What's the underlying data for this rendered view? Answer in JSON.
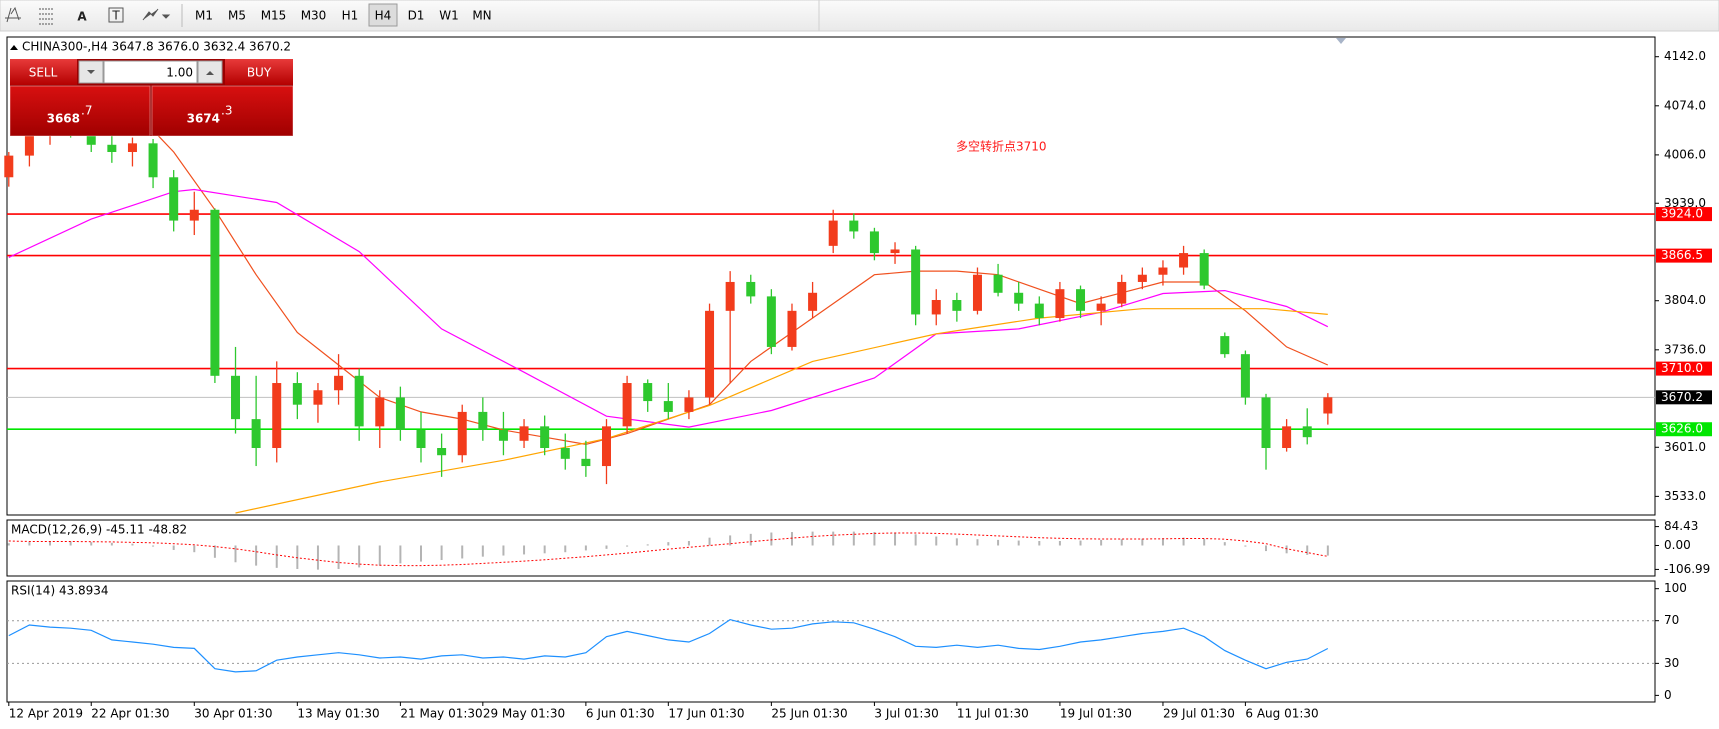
{
  "toolbar": {
    "text_tool": "A",
    "text_box_tool": "T",
    "timeframes": [
      "M1",
      "M5",
      "M15",
      "M30",
      "H1",
      "H4",
      "D1",
      "W1",
      "MN"
    ],
    "active": "H4"
  },
  "trade_panel": {
    "sell": "SELL",
    "lot": "1.00",
    "buy": "BUY",
    "bid": {
      "digits": "3668",
      "pips": ".7"
    },
    "ask": {
      "digits": "3674",
      "pips": ".3"
    }
  },
  "chart_data": [
    {
      "type": "candlestick",
      "title": "CHINA300-,H4  3647.8 3676.0 3632.4 3670.2",
      "annotation": "多空转折点3710",
      "annotation_color": "#ff1a1a",
      "categories": [
        "12 Apr 2019",
        null,
        null,
        null,
        "22 Apr 01:30",
        null,
        null,
        null,
        null,
        "30 Apr 01:30",
        null,
        null,
        null,
        null,
        "13 May 01:30",
        null,
        null,
        null,
        null,
        "21 May 01:30",
        null,
        null,
        null,
        "29 May 01:30",
        null,
        null,
        null,
        null,
        "6 Jun 01:30",
        null,
        null,
        null,
        "17 Jun 01:30",
        null,
        null,
        null,
        null,
        "25 Jun 01:30",
        null,
        null,
        null,
        null,
        "3 Jul 01:30",
        null,
        null,
        null,
        "11 Jul 01:30",
        null,
        null,
        null,
        null,
        "19 Jul 01:30",
        null,
        null,
        null,
        null,
        "29 Jul 01:30",
        null,
        null,
        null,
        "6 Aug 01:30",
        null,
        null,
        null,
        null
      ],
      "open": [
        3975,
        4005,
        4040,
        4050,
        4035,
        4020,
        4010,
        4022,
        3975,
        3915,
        3930,
        3700,
        3640,
        3600,
        3690,
        3660,
        3680,
        3700,
        3630,
        3670,
        3625,
        3600,
        3590,
        3650,
        3625,
        3610,
        3630,
        3600,
        3585,
        3575,
        3630,
        3690,
        3665,
        3650,
        3670,
        3790,
        3830,
        3810,
        3740,
        3790,
        3880,
        3915,
        3900,
        3870,
        3875,
        3785,
        3805,
        3790,
        3840,
        3815,
        3800,
        3780,
        3820,
        3790,
        3800,
        3830,
        3840,
        3850,
        3870,
        3755,
        3730,
        3670,
        3600,
        3630,
        3647.8
      ],
      "high": [
        4010,
        4060,
        4080,
        4075,
        4050,
        4035,
        4030,
        4028,
        3985,
        3955,
        3932,
        3740,
        3700,
        3720,
        3705,
        3690,
        3730,
        3710,
        3680,
        3685,
        3650,
        3620,
        3660,
        3670,
        3650,
        3640,
        3645,
        3620,
        3610,
        3640,
        3700,
        3695,
        3690,
        3680,
        3800,
        3845,
        3840,
        3820,
        3800,
        3830,
        3930,
        3925,
        3905,
        3885,
        3880,
        3820,
        3815,
        3850,
        3855,
        3830,
        3810,
        3830,
        3825,
        3810,
        3840,
        3850,
        3860,
        3880,
        3875,
        3760,
        3735,
        3675,
        3640,
        3655,
        3676.0
      ],
      "low": [
        3962,
        3990,
        4020,
        4030,
        4010,
        3995,
        3990,
        3960,
        3900,
        3895,
        3690,
        3620,
        3575,
        3580,
        3640,
        3635,
        3660,
        3610,
        3600,
        3610,
        3580,
        3560,
        3580,
        3610,
        3590,
        3600,
        3590,
        3570,
        3560,
        3550,
        3620,
        3650,
        3640,
        3640,
        3660,
        3690,
        3800,
        3730,
        3735,
        3780,
        3870,
        3890,
        3860,
        3855,
        3770,
        3770,
        3775,
        3785,
        3810,
        3790,
        3770,
        3775,
        3780,
        3770,
        3795,
        3820,
        3825,
        3840,
        3820,
        3725,
        3660,
        3570,
        3595,
        3605,
        3632.4
      ],
      "close": [
        4005,
        4040,
        4050,
        4035,
        4020,
        4010,
        4022,
        3975,
        3915,
        3930,
        3700,
        3640,
        3600,
        3690,
        3660,
        3680,
        3700,
        3630,
        3670,
        3625,
        3600,
        3590,
        3650,
        3625,
        3610,
        3630,
        3600,
        3585,
        3575,
        3630,
        3690,
        3665,
        3650,
        3670,
        3790,
        3830,
        3810,
        3740,
        3790,
        3815,
        3915,
        3900,
        3870,
        3875,
        3785,
        3805,
        3790,
        3840,
        3815,
        3800,
        3780,
        3820,
        3790,
        3800,
        3830,
        3840,
        3850,
        3870,
        3825,
        3730,
        3670,
        3600,
        3630,
        3615,
        3670.2
      ],
      "up_color": "#f23c1c",
      "down_color": "#2ec82e",
      "moving_averages": [
        {
          "color": "#f0501e",
          "x": [
            7,
            8,
            10,
            12,
            14,
            16,
            18,
            20,
            22,
            24,
            26,
            28,
            30,
            32,
            34,
            36,
            38,
            40,
            42,
            44,
            46,
            48,
            50,
            52,
            54,
            56,
            58,
            60,
            62,
            64
          ],
          "values": [
            4040,
            4010,
            3930,
            3840,
            3760,
            3715,
            3670,
            3650,
            3640,
            3625,
            3615,
            3605,
            3620,
            3640,
            3660,
            3720,
            3760,
            3800,
            3840,
            3845,
            3845,
            3840,
            3820,
            3800,
            3815,
            3830,
            3830,
            3790,
            3740,
            3715
          ]
        },
        {
          "color": "#ff00ff",
          "x": [
            0,
            4,
            8,
            9,
            13,
            17,
            21,
            25,
            29,
            33,
            37,
            42,
            45,
            49,
            53,
            56,
            59,
            62,
            64
          ],
          "values": [
            3864,
            3917,
            3955,
            3958,
            3940,
            3872,
            3765,
            3705,
            3644,
            3629,
            3652,
            3697,
            3758,
            3765,
            3788,
            3814,
            3818,
            3796,
            3768
          ]
        },
        {
          "color": "#ffa500",
          "x": [
            11,
            18,
            24,
            29,
            34,
            39,
            45,
            50,
            55,
            61,
            64
          ],
          "values": [
            3510,
            3553,
            3583,
            3613,
            3659,
            3720,
            3758,
            3780,
            3793,
            3793,
            3785
          ]
        }
      ],
      "levels": [
        {
          "value": 3924.0,
          "label": "3924.0",
          "color": "#ff0000",
          "line_color": "#ff0000"
        },
        {
          "value": 3866.5,
          "label": "3866.5",
          "color": "#ff0000",
          "line_color": "#ff0000"
        },
        {
          "value": 3710.0,
          "label": "3710.0",
          "color": "#ff0000",
          "line_color": "#ff0000"
        },
        {
          "value": 3626.0,
          "label": "3626.0",
          "color": "#00e600",
          "line_color": "#00e600"
        },
        {
          "value": 3670.2,
          "label": "3670.2",
          "color": "#000000",
          "line_color": "#c0c0c0"
        }
      ],
      "ylim": [
        3507.2,
        4169.3
      ],
      "yticks": [
        {
          "value": 4142,
          "label": "4142.0"
        },
        {
          "value": 4074,
          "label": "4074.0"
        },
        {
          "value": 4006,
          "label": "4006.0"
        },
        {
          "value": 3939,
          "label": "3939.0"
        },
        {
          "value": 3804,
          "label": "3804.0"
        },
        {
          "value": 3736,
          "label": "3736.0"
        },
        {
          "value": 3601,
          "label": "3601.0"
        },
        {
          "value": 3533,
          "label": "3533.0"
        }
      ]
    },
    {
      "type": "macd",
      "title": "MACD(12,26,9) -45.11 -48.82",
      "histogram": [
        10,
        15,
        20,
        18,
        15,
        12,
        8,
        -5,
        -20,
        -30,
        -55,
        -75,
        -90,
        -100,
        -105,
        -108,
        -105,
        -98,
        -90,
        -80,
        -72,
        -65,
        -58,
        -50,
        -45,
        -40,
        -35,
        -30,
        -22,
        -15,
        -5,
        5,
        15,
        20,
        35,
        45,
        52,
        58,
        60,
        62,
        62,
        62,
        60,
        58,
        50,
        40,
        32,
        28,
        25,
        22,
        20,
        20,
        22,
        25,
        28,
        30,
        32,
        35,
        30,
        15,
        -5,
        -25,
        -35,
        -42,
        -45.11
      ],
      "signal": [
        20,
        18,
        18,
        18,
        17,
        16,
        14,
        12,
        8,
        3,
        -5,
        -15,
        -28,
        -42,
        -55,
        -66,
        -76,
        -83,
        -88,
        -90,
        -90,
        -88,
        -85,
        -80,
        -75,
        -70,
        -64,
        -57,
        -50,
        -42,
        -34,
        -25,
        -16,
        -8,
        0,
        8,
        17,
        25,
        33,
        40,
        46,
        50,
        54,
        56,
        56,
        54,
        51,
        47,
        43,
        39,
        35,
        32,
        30,
        29,
        29,
        29,
        30,
        31,
        31,
        28,
        20,
        8,
        -15,
        -32,
        -48.82
      ],
      "histogram_color": "#b4b4b4",
      "signal_color": "#ff0000",
      "ylim": [
        -136.4,
        113.9
      ],
      "yticks": [
        {
          "value": 84.43,
          "label": "84.43"
        },
        {
          "value": 0,
          "label": "0.00"
        },
        {
          "value": -106.99,
          "label": "-106.99"
        }
      ]
    },
    {
      "type": "line",
      "title": "RSI(14) 43.8934",
      "color": "#1e90ff",
      "values": [
        56,
        66,
        64,
        63,
        61,
        52,
        50,
        48,
        45,
        44,
        25,
        22,
        23,
        33,
        36,
        38,
        40,
        38,
        35,
        36,
        34,
        37,
        38,
        35,
        36,
        34,
        37,
        36,
        40,
        55,
        60,
        56,
        52,
        50,
        58,
        71,
        66,
        62,
        63,
        67,
        69,
        68,
        62,
        55,
        46,
        45,
        47,
        45,
        47,
        44,
        43,
        46,
        50,
        52,
        55,
        58,
        60,
        63,
        55,
        42,
        33,
        25,
        31,
        34,
        43.8934
      ],
      "levels": [
        70,
        30
      ],
      "ylim": [
        -6.2,
        107.2
      ],
      "yticks": [
        100,
        70,
        30,
        0
      ]
    }
  ]
}
